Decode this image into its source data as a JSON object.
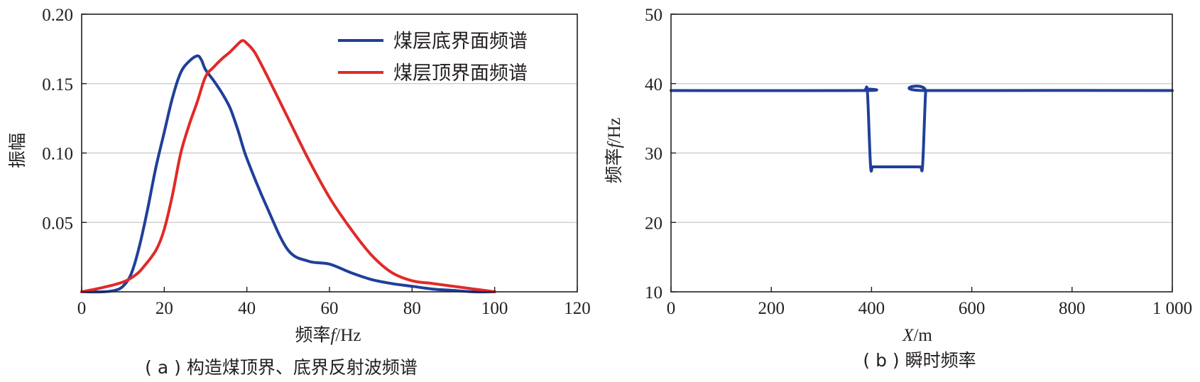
{
  "chart_data": [
    {
      "type": "line",
      "caption": "( a ) 构造煤顶界、底界反射波频谱",
      "xlabel_prefix": "频率",
      "xlabel_var": "f",
      "xlabel_unit": "/Hz",
      "ylabel": "振幅",
      "xlim": [
        0,
        120
      ],
      "ylim": [
        0,
        0.2
      ],
      "xticks": [
        "0",
        "20",
        "40",
        "60",
        "80",
        "100",
        "120"
      ],
      "xtick_values": [
        0,
        20,
        40,
        60,
        80,
        100,
        120
      ],
      "yticks": [
        "0.05",
        "0.10",
        "0.15",
        "0.20"
      ],
      "ytick_values": [
        0.05,
        0.1,
        0.15,
        0.2
      ],
      "grid": "horizontal",
      "legend_position": "top-right",
      "series": [
        {
          "name": "煤层底界面频谱",
          "color": "#1f3f9a",
          "x": [
            0,
            5,
            8,
            10,
            12,
            14,
            16,
            18,
            20,
            22,
            24,
            26,
            28,
            29,
            30,
            32,
            34,
            36,
            38,
            40,
            45,
            50,
            55,
            60,
            65,
            70,
            75,
            80,
            85,
            90,
            95,
            100
          ],
          "y": [
            0,
            0,
            0.001,
            0.004,
            0.013,
            0.033,
            0.06,
            0.09,
            0.115,
            0.14,
            0.158,
            0.166,
            0.17,
            0.167,
            0.16,
            0.152,
            0.143,
            0.132,
            0.115,
            0.096,
            0.06,
            0.03,
            0.022,
            0.02,
            0.014,
            0.009,
            0.006,
            0.004,
            0.002,
            0.001,
            0,
            0
          ]
        },
        {
          "name": "煤层顶界面频谱",
          "color": "#e02a27",
          "x": [
            0,
            5,
            10,
            13,
            15,
            18,
            20,
            22,
            24,
            26,
            28,
            30,
            32,
            34,
            36,
            38,
            39,
            40,
            42,
            45,
            50,
            55,
            60,
            65,
            70,
            75,
            80,
            85,
            90,
            95,
            100
          ],
          "y": [
            0,
            0.003,
            0.007,
            0.012,
            0.018,
            0.03,
            0.045,
            0.07,
            0.1,
            0.12,
            0.137,
            0.155,
            0.162,
            0.168,
            0.173,
            0.179,
            0.181,
            0.179,
            0.172,
            0.155,
            0.125,
            0.095,
            0.068,
            0.046,
            0.027,
            0.014,
            0.008,
            0.006,
            0.004,
            0.002,
            0
          ]
        }
      ]
    },
    {
      "type": "line",
      "caption": "( b ) 瞬时频率",
      "xlabel_var": "X",
      "xlabel_unit": "/m",
      "ylabel_prefix": "频率",
      "ylabel_var": "f",
      "ylabel_unit": "/Hz",
      "xlim": [
        0,
        1000
      ],
      "ylim": [
        10,
        50
      ],
      "xticks": [
        "0",
        "200",
        "400",
        "600",
        "800",
        "1 000"
      ],
      "xtick_values": [
        0,
        200,
        400,
        600,
        800,
        1000
      ],
      "yticks": [
        "10",
        "20",
        "30",
        "40",
        "50"
      ],
      "ytick_values": [
        10,
        20,
        30,
        40,
        50
      ],
      "grid": "horizontal",
      "series": [
        {
          "color": "#1f3f9a",
          "x": [
            0,
            380,
            388,
            392,
            398,
            402,
            410,
            490,
            498,
            502,
            508,
            512,
            1000
          ],
          "y": [
            39,
            39,
            39.2,
            38.5,
            28.2,
            28,
            28,
            28,
            28,
            28.3,
            38.8,
            39,
            39
          ]
        }
      ]
    }
  ]
}
